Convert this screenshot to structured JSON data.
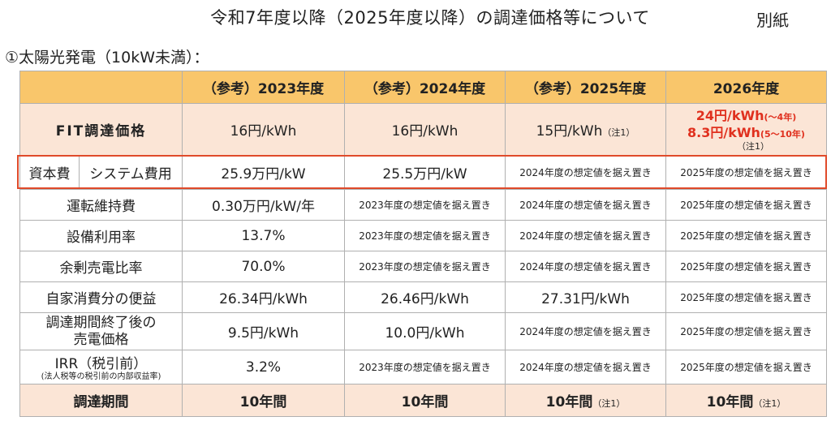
{
  "title": "令和7年度以降（2025年度以降）の調達価格等について",
  "annex": "別紙",
  "subtitle": "①太陽光発電（10kW未満）：",
  "headers": [
    "",
    "（参考）2023年度",
    "（参考）2024年度",
    "（参考）2025年度",
    "2026年度"
  ],
  "fit": {
    "label": "FIT調達価格",
    "c2023": "16円/kWh",
    "c2024": "16円/kWh",
    "c2025": "15円/kWh",
    "c2025_note": "（注1）",
    "c2026_line1": "24円/kWh",
    "c2026_line1_sub": "(～4年)",
    "c2026_line2": "8.3円/kWh",
    "c2026_line2_sub": "(5～10年)",
    "c2026_note": "（注1）"
  },
  "system_cost": {
    "label_a": "資本費",
    "label_b": "システム費用",
    "c2023": "25.9万円/kW",
    "c2024": "25.5万円/kW",
    "c2025": "2024年度の想定値を据え置き",
    "c2026": "2025年度の想定値を据え置き"
  },
  "rows": [
    {
      "label": "運転維持費",
      "c2023": "0.30万円/kW/年",
      "c2024": "2023年度の想定値を据え置き",
      "c2025": "2024年度の想定値を据え置き",
      "c2026": "2025年度の想定値を据え置き"
    },
    {
      "label": "設備利用率",
      "c2023": "13.7%",
      "c2024": "2023年度の想定値を据え置き",
      "c2025": "2024年度の想定値を据え置き",
      "c2026": "2025年度の想定値を据え置き"
    },
    {
      "label": "余剰売電比率",
      "c2023": "70.0%",
      "c2024": "2023年度の想定値を据え置き",
      "c2025": "2024年度の想定値を据え置き",
      "c2026": "2025年度の想定値を据え置き"
    },
    {
      "label": "自家消費分の便益",
      "c2023": "26.34円/kWh",
      "c2024": "26.46円/kWh",
      "c2025": "27.31円/kWh",
      "c2026": "2025年度の想定値を据え置き"
    },
    {
      "label": "調達期間終了後の売電価格",
      "c2023": "9.5円/kWh",
      "c2024": "10.0円/kWh",
      "c2025": "2024年度の想定値を据え置き",
      "c2026": "2025年度の想定値を据え置き"
    }
  ],
  "irr": {
    "label": "IRR（税引前）",
    "sublabel": "(法人税等の税引前の内部収益率)",
    "c2023": "3.2%",
    "c2024": "2023年度の想定値を据え置き",
    "c2025": "2024年度の想定値を据え置き",
    "c2026": "2025年度の想定値を据え置き"
  },
  "term": {
    "label": "調達期間",
    "c2023": "10年間",
    "c2024": "10年間",
    "c2025": "10年間",
    "c2025_note": "（注1）",
    "c2026": "10年間",
    "c2026_note": "（注1）"
  }
}
